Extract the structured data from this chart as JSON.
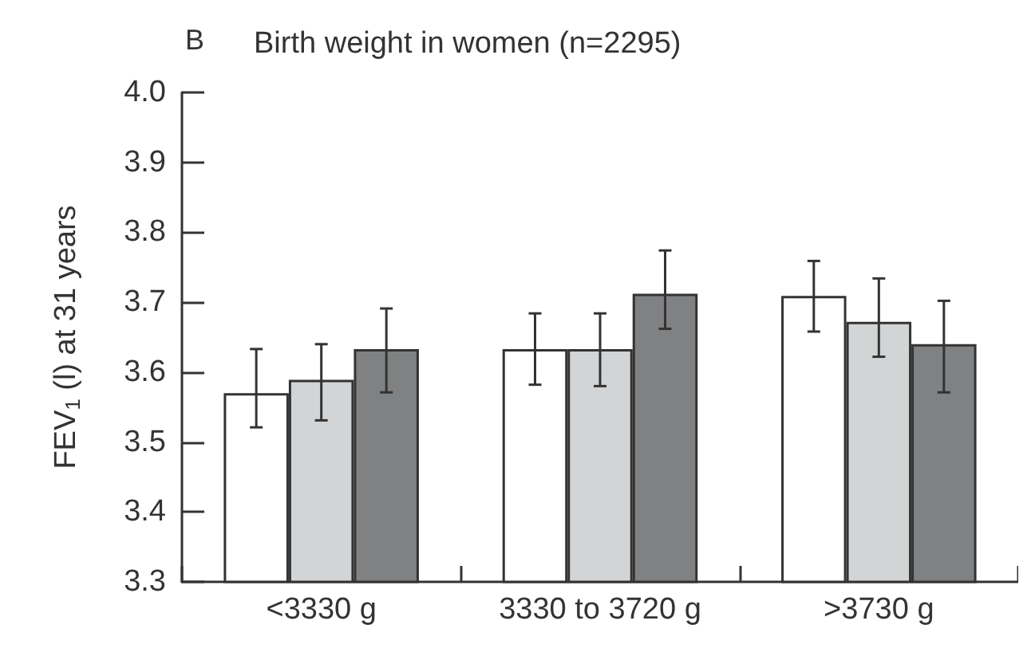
{
  "chart_data": {
    "type": "bar",
    "title": "Birth weight in women (n=2295)",
    "annotations": [
      "B"
    ],
    "ylabel": "FEV$_{1}$ (l) at 31 years",
    "categories": [
      "<3330 g",
      "3330 to 3720 g",
      ">3730 g"
    ],
    "series": [
      {
        "color": "#ffffff",
        "values": [
          3.57,
          3.633,
          3.709
        ],
        "errors": [
          [
            3.521,
            3.633
          ],
          [
            3.582,
            3.684
          ],
          [
            3.658,
            3.759
          ]
        ]
      },
      {
        "color": "#d3d4d6",
        "values": [
          3.589,
          3.633,
          3.672
        ],
        "errors": [
          [
            3.531,
            3.64
          ],
          [
            3.58,
            3.684
          ],
          [
            3.622,
            3.734
          ]
        ]
      },
      {
        "color": "#808183",
        "values": [
          3.633,
          3.712,
          3.64
        ],
        "errors": [
          [
            3.571,
            3.691
          ],
          [
            3.662,
            3.774
          ],
          [
            3.571,
            3.702
          ]
        ]
      }
    ],
    "ylim": [
      3.3,
      4.0
    ],
    "yticks": [
      3.3,
      3.4,
      3.5,
      3.6,
      3.7,
      3.8,
      3.9,
      {
        "value": 4,
        "label": "4.0"
      }
    ],
    "grid": false
  }
}
